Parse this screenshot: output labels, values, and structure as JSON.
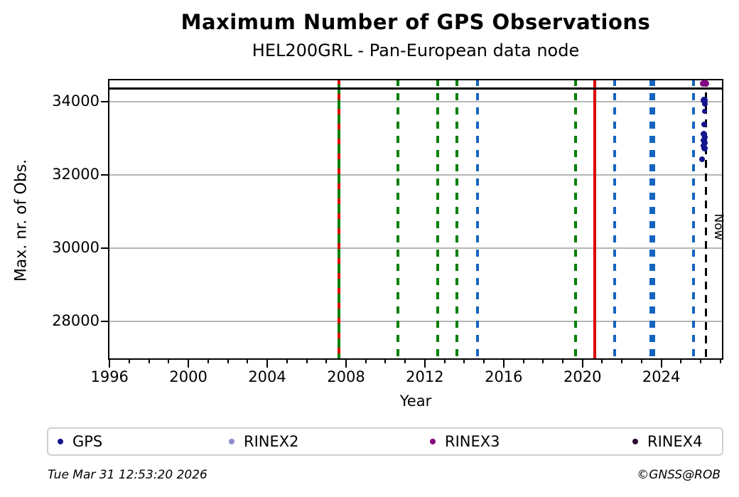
{
  "header": {
    "title": "Maximum Number of GPS Observations",
    "subtitle": "HEL200GRL - Pan-European data node"
  },
  "footer": {
    "timestamp": "Tue Mar 31 12:53:20 2026",
    "credit": "©GNSS@ROB"
  },
  "chart_data": {
    "type": "scatter",
    "title": "Maximum Number of GPS Observations",
    "subtitle": "HEL200GRL - Pan-European data node",
    "xlabel": "Year",
    "ylabel": "Max. nr. of Obs.",
    "xlim": [
      1995.92,
      2027.15
    ],
    "ylim": [
      26958,
      34621
    ],
    "x_major_ticks": [
      1996,
      2000,
      2004,
      2008,
      2012,
      2016,
      2020,
      2024
    ],
    "x_minor_tick_step": 1,
    "y_ticks": [
      28000,
      30000,
      32000,
      34000
    ],
    "grid": "horizontal",
    "grid_color": "#b6b6b6",
    "hline": {
      "value": 34360,
      "color": "#000000"
    },
    "now_line": {
      "year": 2026.25,
      "label": "Now",
      "color": "#000000",
      "style": "dashed"
    },
    "event_lines": [
      {
        "year": 2007.65,
        "color": "#008000",
        "style": "solid",
        "width": 4
      },
      {
        "year": 2007.65,
        "color": "#dd0000",
        "style": "dashed",
        "width": 4,
        "dash": 8,
        "gap": 13
      },
      {
        "year": 2010.63,
        "color": "#008000",
        "style": "dashed",
        "width": 4
      },
      {
        "year": 2012.64,
        "color": "#008000",
        "style": "dashed",
        "width": 4
      },
      {
        "year": 2013.61,
        "color": "#008000",
        "style": "dashed",
        "width": 4
      },
      {
        "year": 2014.66,
        "color": "#1565c0",
        "style": "dashed",
        "width": 4
      },
      {
        "year": 2019.64,
        "color": "#008000",
        "style": "dashed",
        "width": 4
      },
      {
        "year": 2020.64,
        "color": "#dd0000",
        "style": "solid",
        "width": 4
      },
      {
        "year": 2021.63,
        "color": "#1565c0",
        "style": "dashed",
        "width": 4
      },
      {
        "year": 2023.47,
        "color": "#1565c0",
        "style": "dashed",
        "width": 4
      },
      {
        "year": 2023.6,
        "color": "#1565c0",
        "style": "dashed",
        "width": 4
      },
      {
        "year": 2025.62,
        "color": "#1565c0",
        "style": "dashed",
        "width": 4
      }
    ],
    "series": [
      {
        "name": "GPS",
        "color": "#14148c",
        "points": [
          [
            2026.17,
            34030,
            10
          ],
          [
            2026.2,
            33940,
            8
          ],
          [
            2026.21,
            33740,
            7
          ],
          [
            2026.19,
            33370,
            8
          ],
          [
            2026.16,
            33120,
            9
          ],
          [
            2026.21,
            33030,
            8
          ],
          [
            2026.17,
            32950,
            9
          ],
          [
            2026.22,
            32880,
            8
          ],
          [
            2026.13,
            32800,
            8
          ],
          [
            2026.19,
            32720,
            9
          ],
          [
            2026.07,
            32430,
            8
          ]
        ]
      },
      {
        "name": "RINEX2",
        "color": "#8c8cd0",
        "points": []
      },
      {
        "name": "RINEX3",
        "color": "#800080",
        "points": [
          [
            2026.13,
            34500,
            9
          ],
          [
            2026.19,
            34510,
            9
          ],
          [
            2026.25,
            34500,
            9
          ]
        ]
      },
      {
        "name": "RINEX4",
        "color": "#2b0a33",
        "points": []
      }
    ],
    "legend": {
      "position": "bottom",
      "items": [
        "GPS",
        "RINEX2",
        "RINEX3",
        "RINEX4"
      ]
    }
  }
}
